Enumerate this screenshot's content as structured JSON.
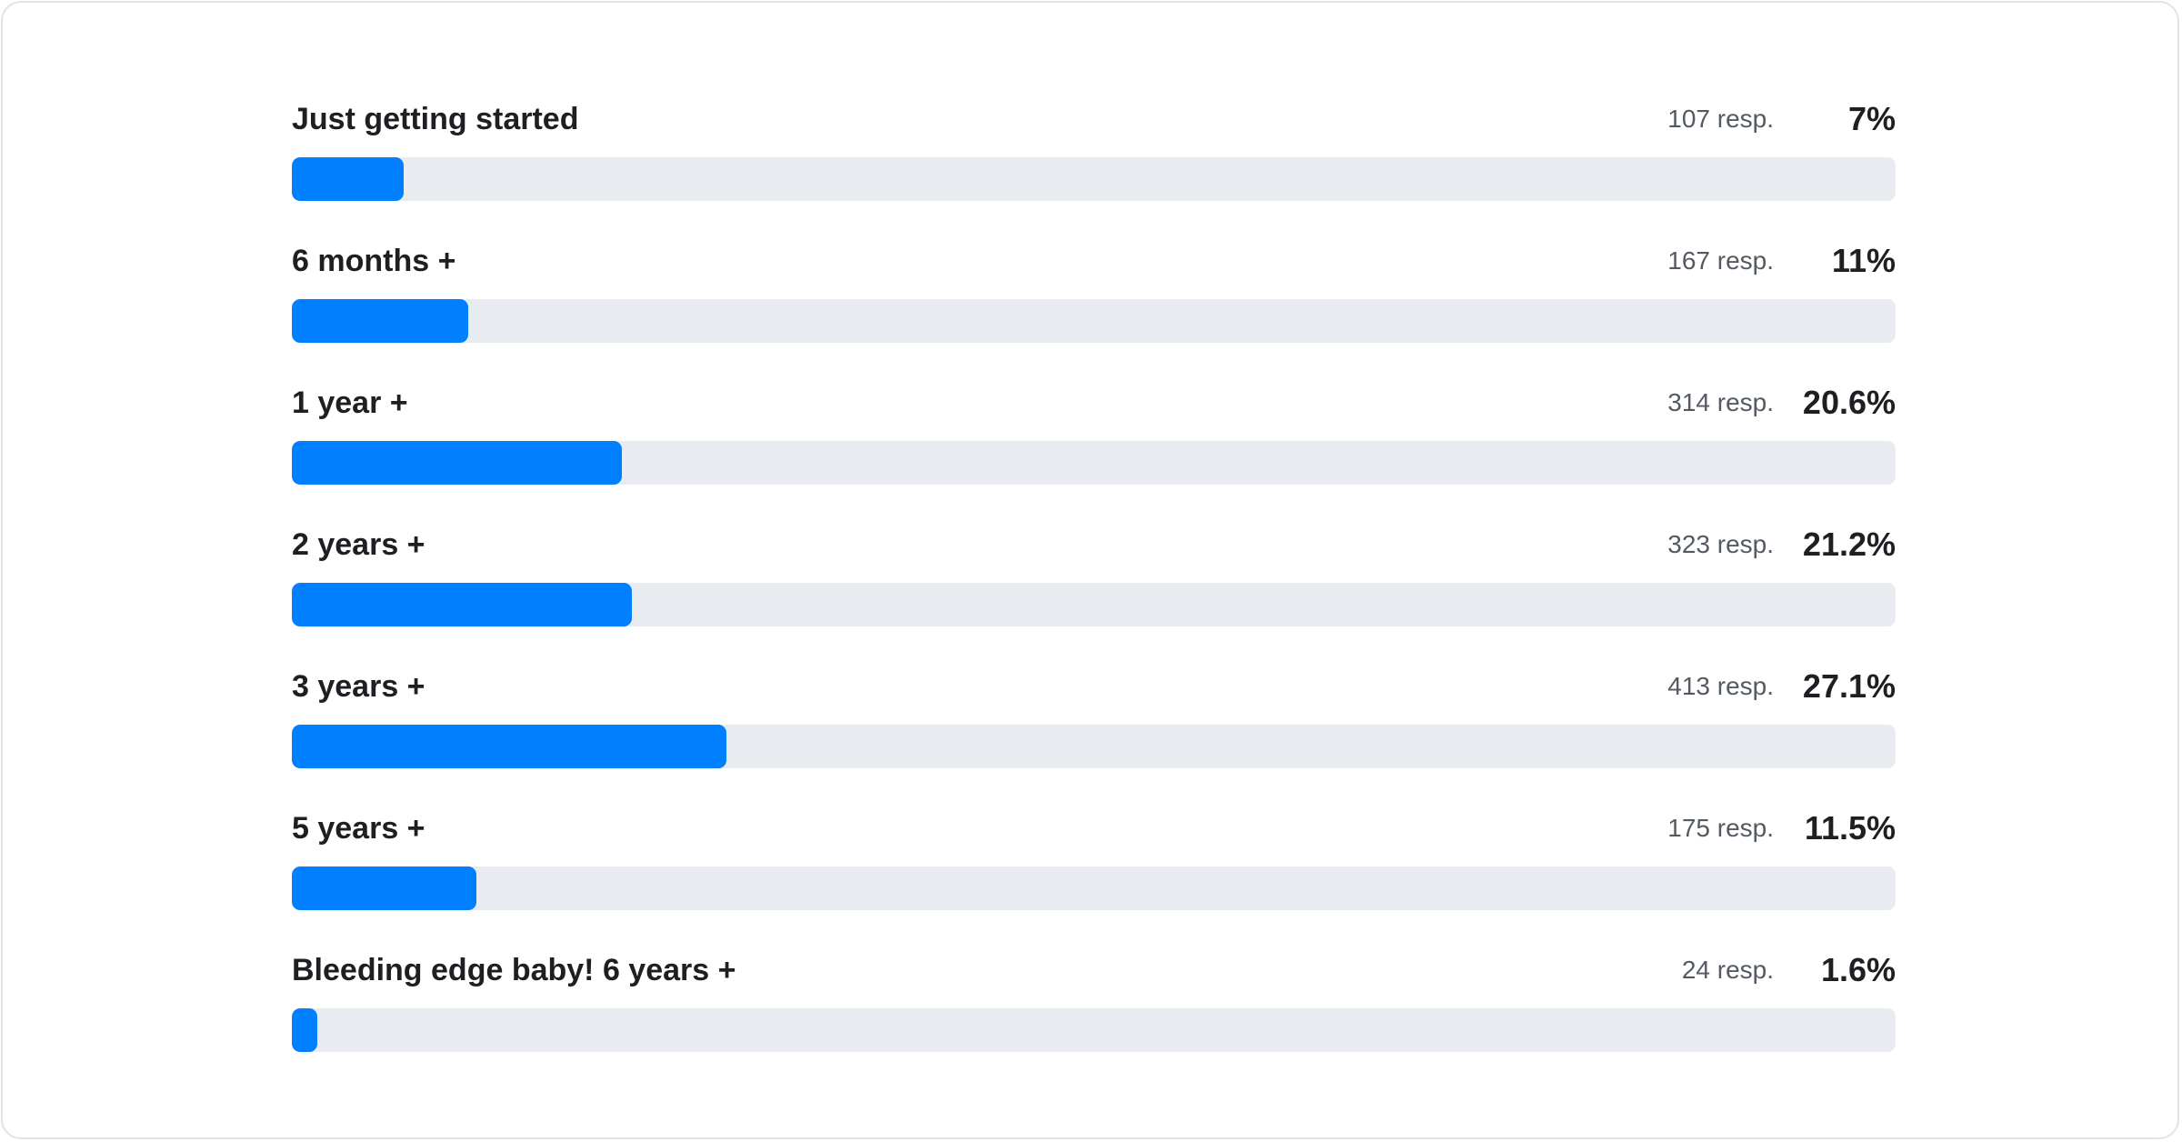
{
  "chart_data": {
    "type": "bar",
    "orientation": "horizontal",
    "categories": [
      "Just getting started",
      "6 months +",
      "1 year +",
      "2 years +",
      "3 years +",
      "5 years +",
      "Bleeding edge baby! 6 years +"
    ],
    "responses": [
      107,
      167,
      314,
      323,
      413,
      175,
      24
    ],
    "response_labels": [
      "107 resp.",
      "167 resp.",
      "314 resp.",
      "323 resp.",
      "413 resp.",
      "175 resp.",
      "24 resp."
    ],
    "values": [
      7,
      11,
      20.6,
      21.2,
      27.1,
      11.5,
      1.6
    ],
    "value_labels": [
      "7%",
      "11%",
      "20.6%",
      "21.2%",
      "27.1%",
      "11.5%",
      "1.6%"
    ],
    "xlim": [
      0,
      100
    ],
    "colors": {
      "fill": "#0080ff",
      "track": "#e8ebf0"
    }
  }
}
